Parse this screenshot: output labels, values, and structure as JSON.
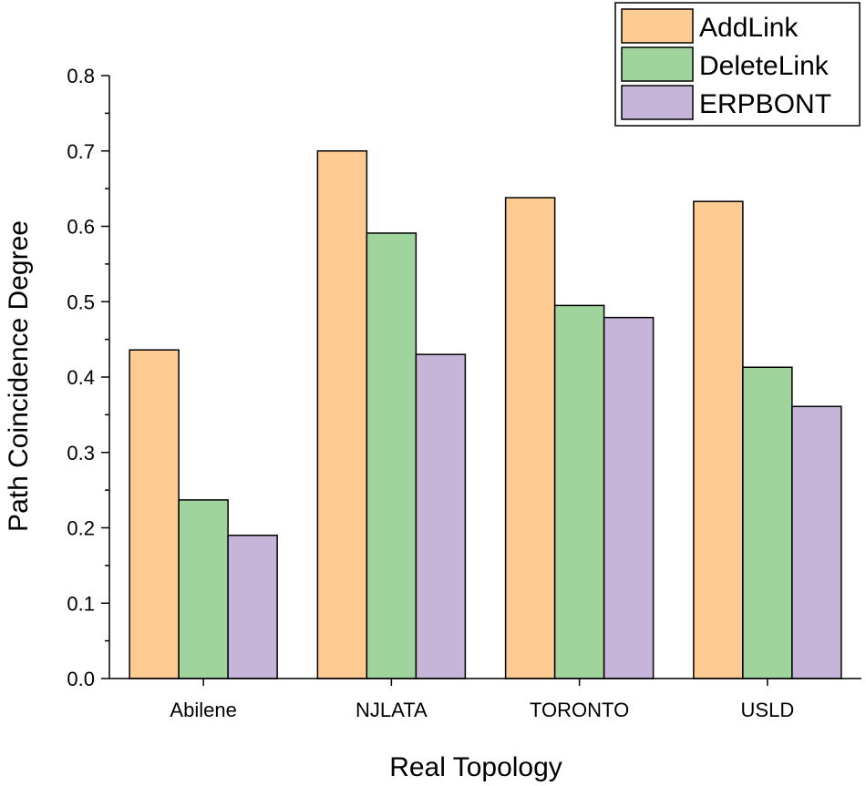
{
  "chart_data": {
    "type": "bar",
    "title": "",
    "xlabel": "Real Topology",
    "ylabel": "Path Coincidence Degree",
    "categories": [
      "Abilene",
      "NJLATA",
      "TORONTO",
      "USLD"
    ],
    "series": [
      {
        "name": "AddLink",
        "color": "#FECC93",
        "values": [
          0.436,
          0.7,
          0.638,
          0.633
        ]
      },
      {
        "name": "DeleteLink",
        "color": "#9FD49C",
        "values": [
          0.237,
          0.591,
          0.495,
          0.413
        ]
      },
      {
        "name": "ERPBONT",
        "color": "#C7B4D9",
        "values": [
          0.19,
          0.43,
          0.479,
          0.361
        ]
      }
    ],
    "ylim": [
      0,
      0.8
    ],
    "yticks": [
      "0.0",
      "0.1",
      "0.2",
      "0.3",
      "0.4",
      "0.5",
      "0.6",
      "0.7",
      "0.8"
    ],
    "legend_position": "top-right",
    "grid": false
  }
}
